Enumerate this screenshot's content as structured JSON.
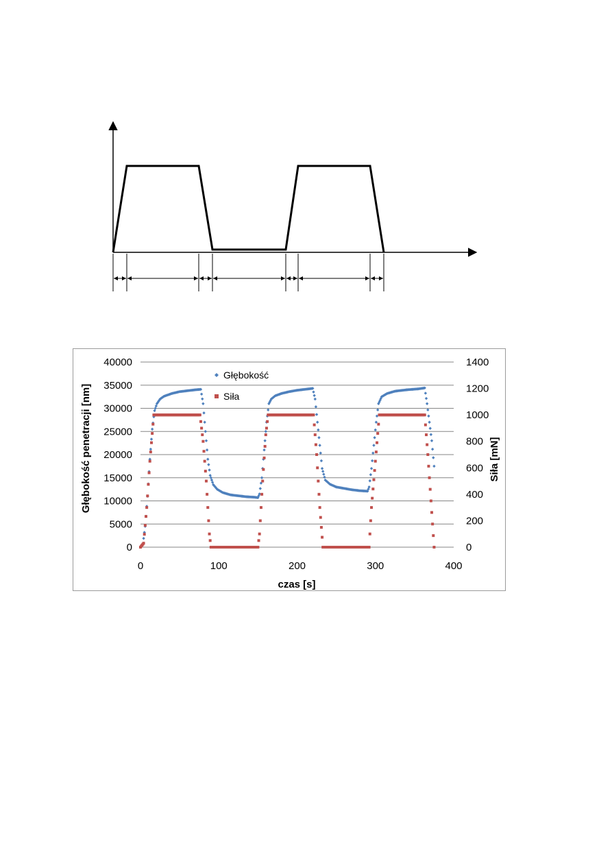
{
  "schematic": {
    "type": "load-time-schematic",
    "profile": [
      [
        0,
        0
      ],
      [
        1,
        1
      ],
      [
        6,
        1
      ],
      [
        7,
        0.02
      ],
      [
        12,
        0.02
      ],
      [
        13,
        1
      ],
      [
        18,
        1
      ],
      [
        19,
        0
      ]
    ],
    "interval_markers": 9
  },
  "chart_data": {
    "type": "scatter",
    "title": "",
    "xlabel": "czas [s]",
    "ylabel_left": "Głębokość penetracji [nm]",
    "ylabel_right": "Siła [mN]",
    "xlim": [
      0,
      400
    ],
    "ylim_left": [
      0,
      40000
    ],
    "ylim_right": [
      0,
      1400
    ],
    "x_ticks": [
      "0",
      "100",
      "200",
      "300",
      "400"
    ],
    "y_left_ticks": [
      "0",
      "5000",
      "10000",
      "15000",
      "20000",
      "25000",
      "30000",
      "35000",
      "40000"
    ],
    "y_right_ticks": [
      "0",
      "200",
      "400",
      "600",
      "800",
      "1000",
      "1200",
      "1400"
    ],
    "grid": "horizontal",
    "legend_position": "top-center",
    "series": [
      {
        "name": "Głębokość",
        "axis": "left",
        "color": "#4f81bd",
        "marker": "diamond",
        "points": [
          [
            0,
            0
          ],
          [
            3,
            600
          ],
          [
            6,
            4500
          ],
          [
            9,
            11000
          ],
          [
            12,
            19000
          ],
          [
            15,
            25500
          ],
          [
            18,
            29500
          ],
          [
            21,
            31000
          ],
          [
            25,
            32000
          ],
          [
            30,
            32600
          ],
          [
            40,
            33200
          ],
          [
            50,
            33600
          ],
          [
            60,
            33800
          ],
          [
            70,
            34000
          ],
          [
            77,
            34100
          ],
          [
            80,
            31000
          ],
          [
            83,
            25000
          ],
          [
            86,
            19000
          ],
          [
            89,
            15500
          ],
          [
            93,
            13500
          ],
          [
            98,
            12500
          ],
          [
            105,
            11800
          ],
          [
            115,
            11300
          ],
          [
            125,
            11100
          ],
          [
            135,
            10900
          ],
          [
            145,
            10800
          ],
          [
            150,
            10700
          ],
          [
            152,
            11500
          ],
          [
            155,
            15000
          ],
          [
            158,
            21000
          ],
          [
            161,
            27000
          ],
          [
            164,
            31000
          ],
          [
            167,
            32000
          ],
          [
            172,
            32700
          ],
          [
            180,
            33200
          ],
          [
            190,
            33600
          ],
          [
            200,
            33900
          ],
          [
            210,
            34100
          ],
          [
            220,
            34300
          ],
          [
            223,
            32000
          ],
          [
            226,
            27000
          ],
          [
            229,
            22000
          ],
          [
            232,
            17000
          ],
          [
            236,
            14500
          ],
          [
            242,
            13600
          ],
          [
            250,
            13000
          ],
          [
            260,
            12700
          ],
          [
            270,
            12400
          ],
          [
            280,
            12200
          ],
          [
            290,
            12100
          ],
          [
            292,
            13000
          ],
          [
            295,
            17000
          ],
          [
            298,
            22000
          ],
          [
            301,
            27000
          ],
          [
            304,
            31000
          ],
          [
            308,
            32500
          ],
          [
            315,
            33200
          ],
          [
            325,
            33700
          ],
          [
            340,
            34000
          ],
          [
            355,
            34200
          ],
          [
            363,
            34400
          ],
          [
            366,
            31000
          ],
          [
            369,
            27000
          ],
          [
            372,
            23000
          ],
          [
            375,
            17500
          ]
        ]
      },
      {
        "name": "Siła",
        "axis": "right",
        "color": "#c0504d",
        "marker": "square",
        "points": [
          [
            0,
            0
          ],
          [
            4,
            30
          ],
          [
            8,
            300
          ],
          [
            12,
            650
          ],
          [
            17,
            1000
          ],
          [
            30,
            1000
          ],
          [
            45,
            1000
          ],
          [
            60,
            1000
          ],
          [
            76,
            1000
          ],
          [
            80,
            800
          ],
          [
            84,
            500
          ],
          [
            88,
            100
          ],
          [
            90,
            0
          ],
          [
            110,
            0
          ],
          [
            130,
            0
          ],
          [
            150,
            0
          ],
          [
            152,
            100
          ],
          [
            156,
            500
          ],
          [
            160,
            850
          ],
          [
            163,
            1000
          ],
          [
            180,
            1000
          ],
          [
            200,
            1000
          ],
          [
            221,
            1000
          ],
          [
            225,
            700
          ],
          [
            229,
            300
          ],
          [
            233,
            0
          ],
          [
            260,
            0
          ],
          [
            280,
            0
          ],
          [
            292,
            0
          ],
          [
            295,
            300
          ],
          [
            300,
            650
          ],
          [
            305,
            1000
          ],
          [
            330,
            1000
          ],
          [
            350,
            1000
          ],
          [
            363,
            1000
          ],
          [
            367,
            700
          ],
          [
            371,
            350
          ],
          [
            375,
            0
          ]
        ]
      }
    ]
  }
}
